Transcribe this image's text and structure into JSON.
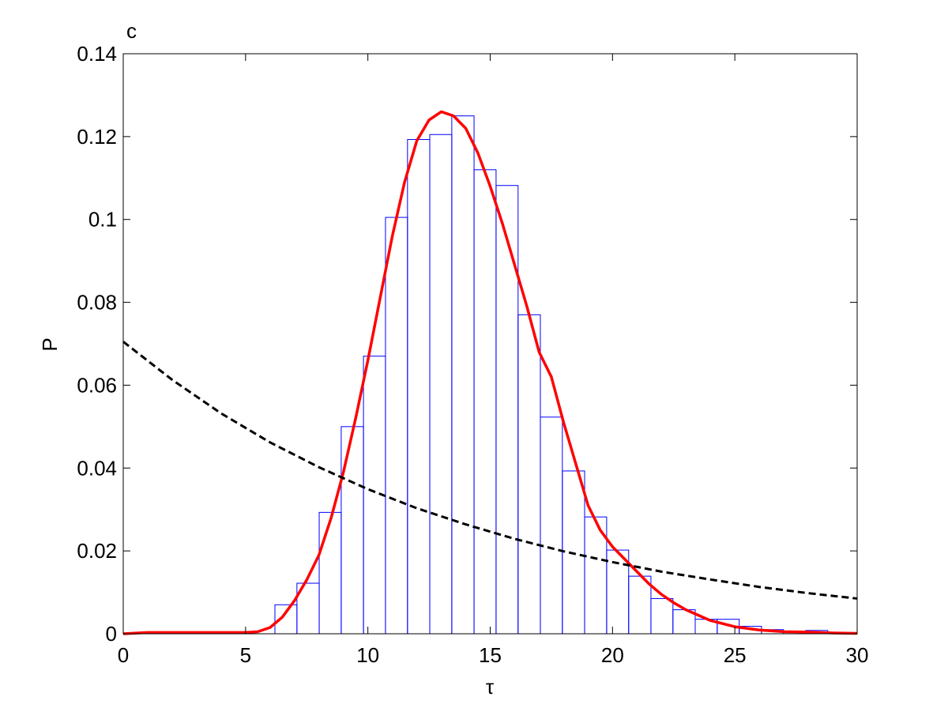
{
  "chart_data": {
    "type": "histogram",
    "annotation": "c",
    "xlabel": "τ",
    "ylabel": "P",
    "bins": [
      6.2,
      7.1,
      8.01,
      8.91,
      9.82,
      10.72,
      11.62,
      12.53,
      13.43,
      14.34,
      15.24,
      16.14,
      17.05,
      17.95,
      18.86,
      19.76,
      20.66,
      21.57,
      22.47,
      23.38,
      24.28,
      25.18,
      26.09,
      26.99,
      27.9,
      28.8,
      29.7
    ],
    "values": [
      0.007,
      0.0122,
      0.0293,
      0.05,
      0.067,
      0.1005,
      0.1193,
      0.1205,
      0.125,
      0.112,
      0.1082,
      0.077,
      0.0523,
      0.0393,
      0.0282,
      0.0202,
      0.0139,
      0.0085,
      0.0058,
      0.0035,
      0.0035,
      0.0018,
      0.001,
      0.0005,
      0.0008,
      0.0003
    ],
    "color": "#0000ff",
    "lines": [
      {
        "color": "#ff0000",
        "dashed": false,
        "x": [
          0,
          1,
          2,
          3,
          4,
          5,
          5.5,
          6,
          6.5,
          7,
          7.5,
          8,
          8.5,
          9,
          9.5,
          10,
          10.5,
          11,
          11.5,
          12,
          12.5,
          13,
          13.5,
          14,
          14.5,
          15,
          15.5,
          16,
          16.5,
          17,
          17.5,
          18,
          18.5,
          19,
          19.5,
          20,
          20.5,
          21,
          21.5,
          22,
          22.5,
          23,
          24,
          25,
          26,
          27,
          28,
          29,
          30
        ],
        "values": [
          0,
          0.0003,
          0.0003,
          0.0003,
          0.0003,
          0.0003,
          0.0005,
          0.0015,
          0.004,
          0.008,
          0.013,
          0.019,
          0.028,
          0.039,
          0.052,
          0.066,
          0.081,
          0.096,
          0.109,
          0.119,
          0.124,
          0.126,
          0.125,
          0.122,
          0.116,
          0.108,
          0.099,
          0.089,
          0.079,
          0.068,
          0.062,
          0.051,
          0.041,
          0.031,
          0.025,
          0.021,
          0.018,
          0.015,
          0.012,
          0.0095,
          0.0075,
          0.0058,
          0.0032,
          0.0017,
          0.0009,
          0.0005,
          0.0004,
          0.0002,
          0.0001
        ]
      },
      {
        "color": "#000000",
        "dashed": true,
        "x": [
          0,
          2,
          4,
          6,
          8,
          10,
          12,
          14,
          16,
          18,
          20,
          22,
          24,
          26,
          28,
          30
        ],
        "values": [
          0.0705,
          0.0613,
          0.0532,
          0.0462,
          0.0402,
          0.0349,
          0.0303,
          0.0264,
          0.0229,
          0.0199,
          0.0173,
          0.015,
          0.0131,
          0.0113,
          0.0098,
          0.0085
        ]
      }
    ],
    "xlim": [
      0,
      30
    ],
    "ylim": [
      0,
      0.14
    ],
    "xticks": [
      0,
      5,
      10,
      15,
      20,
      25,
      30
    ],
    "yticks": [
      0,
      0.02,
      0.04,
      0.06,
      0.08,
      0.1,
      0.12,
      0.14
    ]
  }
}
